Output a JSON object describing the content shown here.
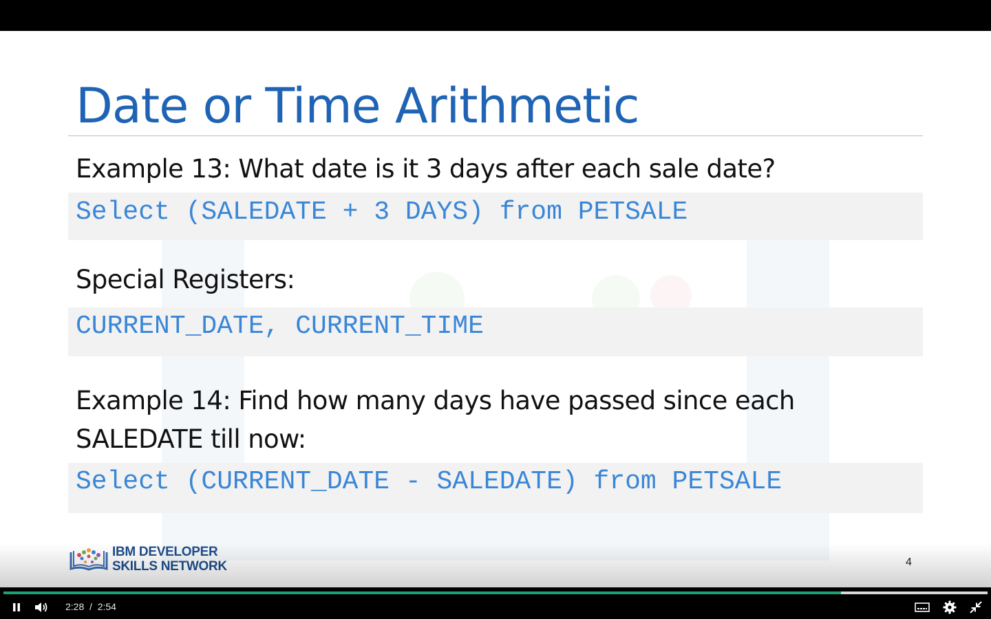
{
  "slide": {
    "title": "Date or Time Arithmetic",
    "example13_heading": "Example 13: What date is it 3 days after each sale date?",
    "example13_code": "Select (SALEDATE + 3 DAYS) from PETSALE",
    "special_registers_heading": "Special Registers:",
    "special_registers_code": "CURRENT_DATE, CURRENT_TIME",
    "example14_heading_line1": "Example 14: Find how many days have passed since each",
    "example14_heading_line2": "SALEDATE till now:",
    "example14_code": "Select (CURRENT_DATE - SALEDATE) from PETSALE",
    "logo_line1": "IBM DEVELOPER",
    "logo_line2": "SKILLS NETWORK",
    "slide_number": "4"
  },
  "player": {
    "current_time": "2:28",
    "separator": "/",
    "duration": "2:54",
    "progress_fraction": 0.851,
    "progress_color": "#1aa37a",
    "icons": {
      "play_pause": "pause-icon",
      "volume": "volume-icon",
      "captions": "captions-icon",
      "settings": "gear-icon",
      "fullscreen": "exit-fullscreen-icon"
    }
  },
  "colors": {
    "title": "#1f63b5",
    "code": "#3a86d6",
    "code_background": "#f2f2f2"
  }
}
